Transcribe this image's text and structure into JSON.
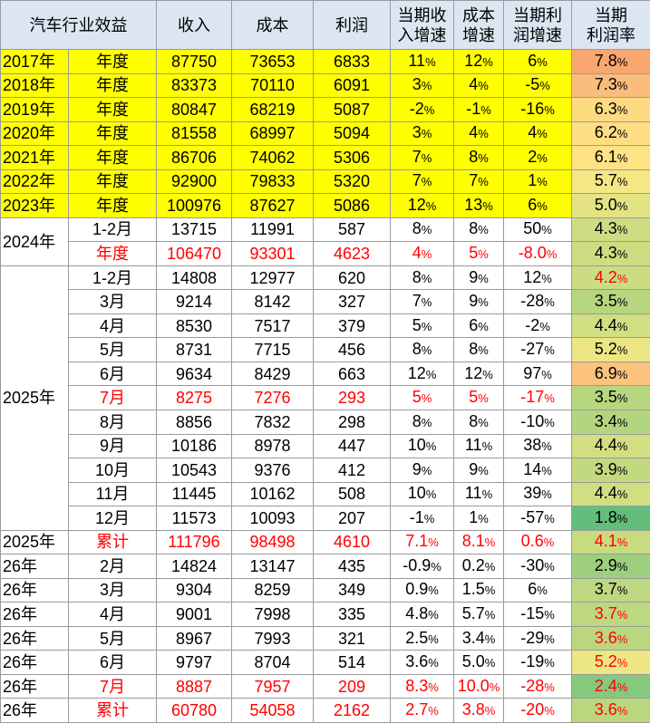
{
  "header": {
    "title": "汽车行业效益",
    "columns": [
      "收入",
      "成本",
      "利润",
      "当期收\n入增速",
      "成本\n增速",
      "当期利\n润增速",
      "当期\n利润率"
    ]
  },
  "rows": [
    {
      "cells": [
        "2017年",
        "年度",
        "87750",
        "73653",
        "6833",
        "11%",
        "12%",
        "6%",
        "7.8%"
      ],
      "fill": "#ffff00",
      "rate_color": "#f9a66f"
    },
    {
      "cells": [
        "2018年",
        "年度",
        "83373",
        "70110",
        "6091",
        "3%",
        "4%",
        "-5%",
        "7.3%"
      ],
      "fill": "#ffff00",
      "rate_color": "#fbbd7b"
    },
    {
      "cells": [
        "2019年",
        "年度",
        "80847",
        "68219",
        "5087",
        "-2%",
        "-1%",
        "-16%",
        "6.3%"
      ],
      "fill": "#ffff00",
      "rate_color": "#fedb81"
    },
    {
      "cells": [
        "2020年",
        "年度",
        "81558",
        "68997",
        "5094",
        "3%",
        "4%",
        "4%",
        "6.2%"
      ],
      "fill": "#ffff00",
      "rate_color": "#fede82"
    },
    {
      "cells": [
        "2021年",
        "年度",
        "86706",
        "74062",
        "5306",
        "7%",
        "8%",
        "2%",
        "6.1%"
      ],
      "fill": "#ffff00",
      "rate_color": "#fee283"
    },
    {
      "cells": [
        "2022年",
        "年度",
        "92900",
        "79833",
        "5320",
        "7%",
        "7%",
        "1%",
        "5.7%"
      ],
      "fill": "#ffff00",
      "rate_color": "#f5e884"
    },
    {
      "cells": [
        "2023年",
        "年度",
        "100976",
        "87627",
        "5086",
        "12%",
        "13%",
        "6%",
        "5.0%"
      ],
      "fill": "#ffff00",
      "rate_color": "#e4e383"
    },
    {
      "cells": [
        "2024年",
        "1-2月",
        "13715",
        "11991",
        "587",
        "8%",
        "8%",
        "50%",
        "4.3%"
      ],
      "rate_color": "#cedd82"
    },
    {
      "cells": [
        null,
        "年度",
        "106470",
        "93301",
        "4623",
        "4%",
        "5%",
        "-8.0%",
        "4.3%"
      ],
      "red": [
        1,
        2,
        3,
        4,
        5,
        6,
        7
      ],
      "rate_color": "#cedd82"
    },
    {
      "cells": [
        "2025年",
        "1-2月",
        "14808",
        "12977",
        "620",
        "8%",
        "9%",
        "12%",
        "4.2%"
      ],
      "red": [
        8
      ],
      "rate_color": "#cbdc81"
    },
    {
      "cells": [
        null,
        "3月",
        "9214",
        "8142",
        "327",
        "7%",
        "9%",
        "-28%",
        "3.5%"
      ],
      "rate_color": "#b6d67f"
    },
    {
      "cells": [
        null,
        "4月",
        "8530",
        "7517",
        "379",
        "5%",
        "6%",
        "-2%",
        "4.4%"
      ],
      "rate_color": "#d1de82"
    },
    {
      "cells": [
        null,
        "5月",
        "8731",
        "7715",
        "456",
        "8%",
        "8%",
        "-27%",
        "5.2%"
      ],
      "rate_color": "#ece684"
    },
    {
      "cells": [
        null,
        "6月",
        "9634",
        "8429",
        "663",
        "12%",
        "12%",
        "97%",
        "6.9%"
      ],
      "rate_color": "#fcc37d"
    },
    {
      "cells": [
        null,
        "7月",
        "8275",
        "7276",
        "293",
        "5%",
        "5%",
        "-17%",
        "3.5%"
      ],
      "red": [
        1,
        2,
        3,
        4,
        5,
        6,
        7
      ],
      "rate_color": "#b6d67f"
    },
    {
      "cells": [
        null,
        "8月",
        "8856",
        "7832",
        "298",
        "8%",
        "8%",
        "-10%",
        "3.4%"
      ],
      "rate_color": "#b3d57f"
    },
    {
      "cells": [
        null,
        "9月",
        "10186",
        "8978",
        "447",
        "10%",
        "11%",
        "38%",
        "4.4%"
      ],
      "rate_color": "#d1de82"
    },
    {
      "cells": [
        null,
        "10月",
        "10543",
        "9376",
        "412",
        "9%",
        "9%",
        "14%",
        "3.9%"
      ],
      "rate_color": "#c2d980"
    },
    {
      "cells": [
        null,
        "11月",
        "11445",
        "10162",
        "508",
        "10%",
        "11%",
        "39%",
        "4.4%"
      ],
      "rate_color": "#d1de82"
    },
    {
      "cells": [
        null,
        "12月",
        "11573",
        "10093",
        "207",
        "-1%",
        "1%",
        "-57%",
        "1.8%"
      ],
      "rate_color": "#63be7b"
    },
    {
      "cells": [
        "2025年",
        "累计",
        "111796",
        "98498",
        "4610",
        "7.1%",
        "8.1%",
        "0.6%",
        "4.1%"
      ],
      "red": [
        1,
        2,
        3,
        4,
        5,
        6,
        7,
        8
      ],
      "rate_color": "#c8db81"
    },
    {
      "cells": [
        "26年",
        "2月",
        "14824",
        "13147",
        "435",
        "-0.9%",
        "0.2%",
        "-30%",
        "2.9%"
      ],
      "rate_color": "#9dcf7e"
    },
    {
      "cells": [
        "26年",
        "3月",
        "9304",
        "8259",
        "349",
        "0.9%",
        "1.5%",
        "6%",
        "3.7%"
      ],
      "rate_color": "#bdd880"
    },
    {
      "cells": [
        "26年",
        "4月",
        "9001",
        "7998",
        "335",
        "4.8%",
        "5.7%",
        "-15%",
        "3.7%"
      ],
      "red": [
        8
      ],
      "rate_color": "#bdd880"
    },
    {
      "cells": [
        "26年",
        "5月",
        "8967",
        "7993",
        "321",
        "2.5%",
        "3.4%",
        "-29%",
        "3.6%"
      ],
      "red": [
        8
      ],
      "rate_color": "#bad77f"
    },
    {
      "cells": [
        "26年",
        "6月",
        "9797",
        "8704",
        "514",
        "3.6%",
        "5.0%",
        "-19%",
        "5.2%"
      ],
      "red": [
        8
      ],
      "rate_color": "#ece684"
    },
    {
      "cells": [
        "26年",
        "7月",
        "8887",
        "7957",
        "209",
        "8.3%",
        "10.0%",
        "-28%",
        "2.4%"
      ],
      "red": [
        1,
        2,
        3,
        4,
        5,
        6,
        7,
        8
      ],
      "rate_color": "#86c87d"
    },
    {
      "cells": [
        "26年",
        "累计",
        "60780",
        "54058",
        "2162",
        "2.7%",
        "3.8%",
        "-20%",
        "3.6%"
      ],
      "red": [
        1,
        2,
        3,
        4,
        5,
        6,
        7,
        8
      ],
      "rate_color": "#bad77f"
    }
  ]
}
